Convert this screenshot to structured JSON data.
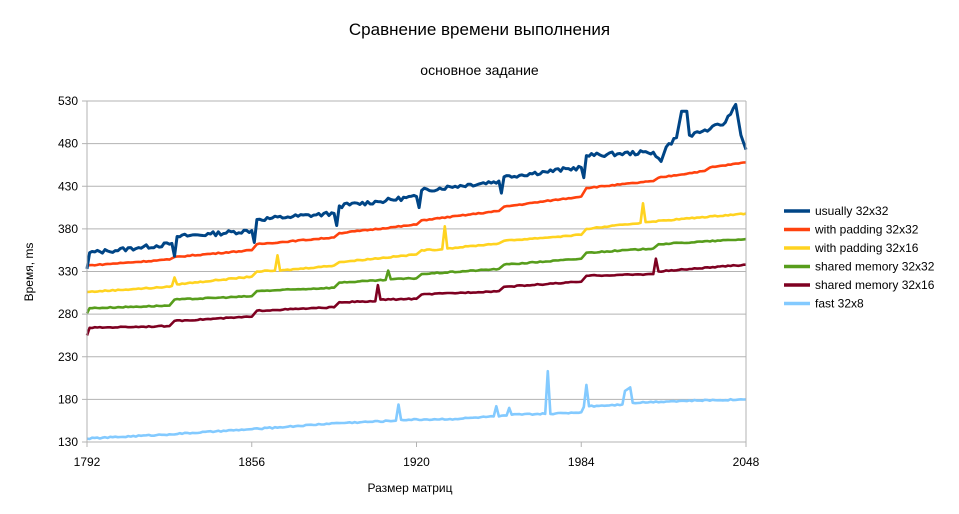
{
  "chart_data": {
    "type": "line",
    "title": "Сравнение времени выполнения",
    "subtitle": "основное задание",
    "xlabel": "Размер матриц",
    "ylabel": "Время, ms",
    "xlim": [
      1792,
      2048
    ],
    "ylim": [
      130,
      530
    ],
    "x_ticks": [
      1792,
      1856,
      1920,
      1984,
      2048
    ],
    "y_ticks": [
      130,
      180,
      230,
      280,
      330,
      380,
      430,
      480,
      530
    ],
    "grid": "horizontal",
    "legend_position": "right",
    "series": [
      {
        "name": "usually 32x32",
        "color": "#004586",
        "points": [
          [
            1792,
            333
          ],
          [
            1793,
            352
          ],
          [
            1800,
            354
          ],
          [
            1812,
            358
          ],
          [
            1824,
            362
          ],
          [
            1825,
            363
          ],
          [
            1826,
            348
          ],
          [
            1827,
            371
          ],
          [
            1840,
            374
          ],
          [
            1856,
            378
          ],
          [
            1857,
            364
          ],
          [
            1858,
            391
          ],
          [
            1870,
            394
          ],
          [
            1888,
            398
          ],
          [
            1889,
            384
          ],
          [
            1890,
            407
          ],
          [
            1905,
            412
          ],
          [
            1920,
            418
          ],
          [
            1921,
            405
          ],
          [
            1922,
            425
          ],
          [
            1935,
            430
          ],
          [
            1952,
            436
          ],
          [
            1953,
            422
          ],
          [
            1954,
            441
          ],
          [
            1970,
            447
          ],
          [
            1984,
            452
          ],
          [
            1985,
            440
          ],
          [
            1986,
            466
          ],
          [
            1998,
            468
          ],
          [
            2012,
            470
          ],
          [
            2015,
            459
          ],
          [
            2017,
            476
          ],
          [
            2021,
            487
          ],
          [
            2023,
            518
          ],
          [
            2025,
            518
          ],
          [
            2026,
            490
          ],
          [
            2034,
            497
          ],
          [
            2040,
            505
          ],
          [
            2044,
            526
          ],
          [
            2046,
            490
          ],
          [
            2048,
            473
          ]
        ]
      },
      {
        "name": "with padding 32x32",
        "color": "#ff420e",
        "points": [
          [
            1792,
            337
          ],
          [
            1824,
            344
          ],
          [
            1826,
            347
          ],
          [
            1856,
            355
          ],
          [
            1858,
            362
          ],
          [
            1888,
            370
          ],
          [
            1890,
            375
          ],
          [
            1920,
            385
          ],
          [
            1922,
            390
          ],
          [
            1952,
            401
          ],
          [
            1954,
            406
          ],
          [
            1984,
            418
          ],
          [
            1986,
            428
          ],
          [
            2012,
            436
          ],
          [
            2014,
            440
          ],
          [
            2032,
            448
          ],
          [
            2034,
            452
          ],
          [
            2048,
            458
          ]
        ]
      },
      {
        "name": "with padding 32x16",
        "color": "#ffd320",
        "points": [
          [
            1792,
            306
          ],
          [
            1824,
            312
          ],
          [
            1825,
            313
          ],
          [
            1826,
            323
          ],
          [
            1827,
            315
          ],
          [
            1856,
            324
          ],
          [
            1858,
            330
          ],
          [
            1865,
            331
          ],
          [
            1866,
            349
          ],
          [
            1867,
            331
          ],
          [
            1888,
            337
          ],
          [
            1890,
            341
          ],
          [
            1920,
            350
          ],
          [
            1922,
            355
          ],
          [
            1930,
            356
          ],
          [
            1931,
            383
          ],
          [
            1932,
            357
          ],
          [
            1952,
            363
          ],
          [
            1954,
            366
          ],
          [
            1984,
            373
          ],
          [
            1986,
            380
          ],
          [
            2007,
            387
          ],
          [
            2008,
            410
          ],
          [
            2009,
            388
          ],
          [
            2048,
            398
          ]
        ]
      },
      {
        "name": "shared memory 32x32",
        "color": "#579d1c",
        "points": [
          [
            1792,
            281
          ],
          [
            1793,
            287
          ],
          [
            1824,
            290
          ],
          [
            1826,
            297
          ],
          [
            1856,
            301
          ],
          [
            1858,
            307
          ],
          [
            1888,
            311
          ],
          [
            1890,
            317
          ],
          [
            1908,
            320
          ],
          [
            1909,
            331
          ],
          [
            1910,
            321
          ],
          [
            1920,
            322
          ],
          [
            1922,
            327
          ],
          [
            1952,
            333
          ],
          [
            1954,
            338
          ],
          [
            1984,
            345
          ],
          [
            1986,
            352
          ],
          [
            2012,
            357
          ],
          [
            2014,
            362
          ],
          [
            2048,
            368
          ]
        ]
      },
      {
        "name": "shared memory 32x16",
        "color": "#7e0021",
        "points": [
          [
            1792,
            255
          ],
          [
            1793,
            264
          ],
          [
            1824,
            266
          ],
          [
            1826,
            272
          ],
          [
            1856,
            277
          ],
          [
            1858,
            284
          ],
          [
            1888,
            288
          ],
          [
            1890,
            294
          ],
          [
            1904,
            295
          ],
          [
            1905,
            314
          ],
          [
            1906,
            297
          ],
          [
            1920,
            298
          ],
          [
            1922,
            303
          ],
          [
            1952,
            307
          ],
          [
            1954,
            312
          ],
          [
            1984,
            318
          ],
          [
            1986,
            325
          ],
          [
            2012,
            327
          ],
          [
            2013,
            345
          ],
          [
            2014,
            330
          ],
          [
            2048,
            338
          ]
        ]
      },
      {
        "name": "fast 32x8",
        "color": "#83caff",
        "points": [
          [
            1792,
            134
          ],
          [
            1824,
            139
          ],
          [
            1856,
            145
          ],
          [
            1870,
            148
          ],
          [
            1888,
            152
          ],
          [
            1912,
            155
          ],
          [
            1913,
            174
          ],
          [
            1914,
            156
          ],
          [
            1935,
            157
          ],
          [
            1950,
            160
          ],
          [
            1951,
            172
          ],
          [
            1952,
            160
          ],
          [
            1955,
            161
          ],
          [
            1956,
            170
          ],
          [
            1957,
            162
          ],
          [
            1970,
            163
          ],
          [
            1971,
            213
          ],
          [
            1972,
            163
          ],
          [
            1984,
            165
          ],
          [
            1985,
            171
          ],
          [
            1986,
            197
          ],
          [
            1987,
            172
          ],
          [
            2000,
            174
          ],
          [
            2001,
            190
          ],
          [
            2003,
            194
          ],
          [
            2004,
            176
          ],
          [
            2020,
            178
          ],
          [
            2048,
            180
          ]
        ]
      }
    ]
  }
}
